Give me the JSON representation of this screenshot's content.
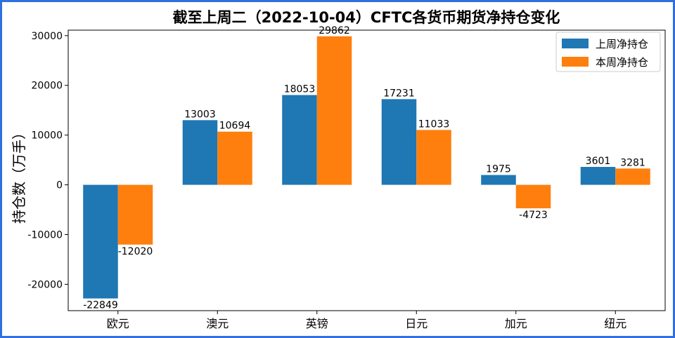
{
  "chart_data": {
    "type": "bar",
    "title": "截至上周二（2022-10-04）CFTC各货币期货净持仓变化",
    "xlabel": "",
    "ylabel": "持仓数（万手）",
    "categories": [
      "欧元",
      "澳元",
      "英镑",
      "日元",
      "加元",
      "纽元"
    ],
    "series": [
      {
        "name": "上周净持仓",
        "values": [
          -22849,
          13003,
          18053,
          17231,
          1975,
          3601
        ]
      },
      {
        "name": "本周净持仓",
        "values": [
          -12020,
          10694,
          29862,
          11033,
          -4723,
          3281
        ]
      }
    ],
    "ylim": [
      -25300,
      31100
    ],
    "yticks": [
      -20000,
      -10000,
      0,
      10000,
      20000,
      30000
    ],
    "grid": false,
    "legend_position": "top-right",
    "colors": {
      "上周净持仓": "#1f77b4",
      "本周净持仓": "#ff7f0e"
    }
  }
}
